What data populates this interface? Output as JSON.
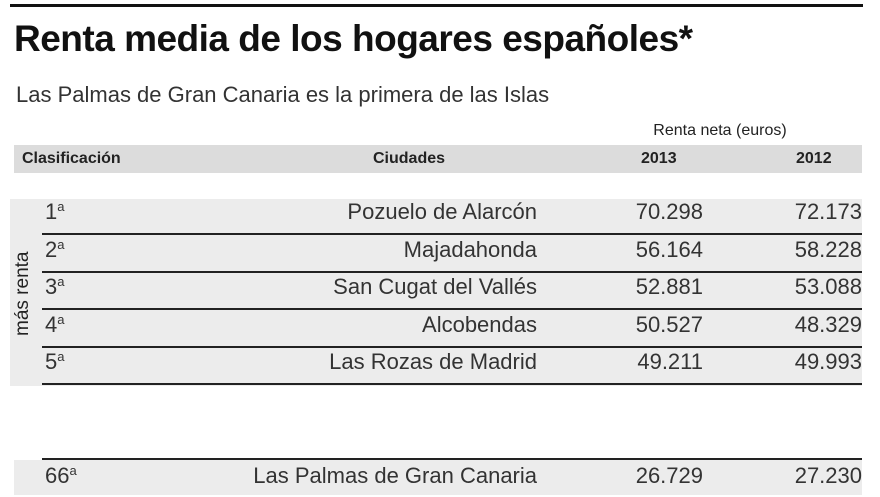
{
  "title": "Renta media de los hogares españoles*",
  "subtitle": "Las Palmas de Gran Canaria es la primera de las Islas",
  "chart_data": {
    "type": "table",
    "group_header": "Renta neta (euros)",
    "columns": [
      "Clasificación",
      "Ciudades",
      "2013",
      "2012"
    ],
    "side_label": "más renta",
    "rows": [
      {
        "rank": "1",
        "ord": "a",
        "city": "Pozuelo de Alarcón",
        "y2013": "70.298",
        "y2012": "72.173"
      },
      {
        "rank": "2",
        "ord": "a",
        "city": "Majadahonda",
        "y2013": "56.164",
        "y2012": "58.228"
      },
      {
        "rank": "3",
        "ord": "a",
        "city": "San Cugat del Vallés",
        "y2013": "52.881",
        "y2012": "53.088"
      },
      {
        "rank": "4",
        "ord": "a",
        "city": "Alcobendas",
        "y2013": "50.527",
        "y2012": "48.329"
      },
      {
        "rank": "5",
        "ord": "a",
        "city": "Las Rozas de Madrid",
        "y2013": "49.211",
        "y2012": "49.993"
      }
    ],
    "highlight_row": {
      "rank": "66",
      "ord": "a",
      "city": "Las Palmas de Gran Canaria",
      "y2013": "26.729",
      "y2012": "27.230"
    }
  }
}
